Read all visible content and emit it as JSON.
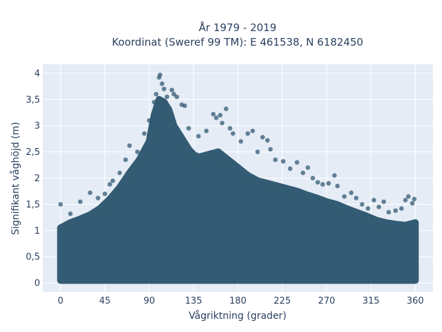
{
  "chart_data": {
    "type": "scatter",
    "title_line1": "År 1979 - 2019",
    "title_line2": "Koordinat (Sweref 99 TM): E 461538, N 6182450",
    "xlabel": "Vågriktning (grader)",
    "ylabel": "Signifikant våghöjd (m)",
    "xlim": [
      -18,
      378
    ],
    "ylim": [
      -0.17,
      4.17
    ],
    "x_ticks": [
      0,
      45,
      90,
      135,
      180,
      225,
      270,
      315,
      360
    ],
    "x_tick_labels": [
      "0",
      "45",
      "90",
      "135",
      "180",
      "225",
      "270",
      "315",
      "360"
    ],
    "y_ticks": [
      0,
      0.5,
      1,
      1.5,
      2,
      2.5,
      3,
      3.5,
      4
    ],
    "y_tick_labels": [
      "0",
      "0,5",
      "1",
      "1,5",
      "2",
      "2,5",
      "3",
      "3,5",
      "4"
    ],
    "grid": true,
    "marker_color": "#335b73",
    "background_color": "#e5ecf6",
    "envelope": {
      "x": [
        0,
        10,
        20,
        30,
        40,
        50,
        60,
        70,
        80,
        90,
        95,
        100,
        105,
        110,
        115,
        120,
        125,
        130,
        135,
        140,
        150,
        160,
        170,
        180,
        190,
        200,
        210,
        220,
        230,
        240,
        250,
        260,
        270,
        280,
        290,
        300,
        310,
        320,
        330,
        340,
        350,
        360
      ],
      "y": [
        1.05,
        1.15,
        1.22,
        1.3,
        1.42,
        1.6,
        1.82,
        2.1,
        2.35,
        2.7,
        3.2,
        3.5,
        3.45,
        3.3,
        3.0,
        2.85,
        2.7,
        2.55,
        2.45,
        2.4,
        2.45,
        2.5,
        2.35,
        2.2,
        2.05,
        1.95,
        1.9,
        1.85,
        1.8,
        1.75,
        1.68,
        1.62,
        1.55,
        1.5,
        1.42,
        1.35,
        1.28,
        1.2,
        1.15,
        1.12,
        1.1,
        1.15
      ]
    },
    "outliers": [
      {
        "x": 0,
        "y": 1.5
      },
      {
        "x": 10,
        "y": 1.32
      },
      {
        "x": 20,
        "y": 1.55
      },
      {
        "x": 30,
        "y": 1.72
      },
      {
        "x": 38,
        "y": 1.62
      },
      {
        "x": 45,
        "y": 1.7
      },
      {
        "x": 50,
        "y": 1.88
      },
      {
        "x": 53,
        "y": 1.95
      },
      {
        "x": 60,
        "y": 2.1
      },
      {
        "x": 66,
        "y": 2.35
      },
      {
        "x": 70,
        "y": 2.62
      },
      {
        "x": 78,
        "y": 2.5
      },
      {
        "x": 85,
        "y": 2.85
      },
      {
        "x": 90,
        "y": 3.1
      },
      {
        "x": 95,
        "y": 3.45
      },
      {
        "x": 97,
        "y": 3.6
      },
      {
        "x": 100,
        "y": 3.92
      },
      {
        "x": 101,
        "y": 3.97
      },
      {
        "x": 103,
        "y": 3.8
      },
      {
        "x": 105,
        "y": 3.7
      },
      {
        "x": 108,
        "y": 3.55
      },
      {
        "x": 113,
        "y": 3.68
      },
      {
        "x": 115,
        "y": 3.6
      },
      {
        "x": 118,
        "y": 3.55
      },
      {
        "x": 123,
        "y": 3.4
      },
      {
        "x": 126,
        "y": 3.38
      },
      {
        "x": 130,
        "y": 2.95
      },
      {
        "x": 140,
        "y": 2.8
      },
      {
        "x": 148,
        "y": 2.9
      },
      {
        "x": 155,
        "y": 3.22
      },
      {
        "x": 158,
        "y": 3.15
      },
      {
        "x": 162,
        "y": 3.2
      },
      {
        "x": 164,
        "y": 3.05
      },
      {
        "x": 168,
        "y": 3.32
      },
      {
        "x": 172,
        "y": 2.95
      },
      {
        "x": 175,
        "y": 2.85
      },
      {
        "x": 183,
        "y": 2.7
      },
      {
        "x": 190,
        "y": 2.85
      },
      {
        "x": 195,
        "y": 2.9
      },
      {
        "x": 200,
        "y": 2.5
      },
      {
        "x": 205,
        "y": 2.78
      },
      {
        "x": 210,
        "y": 2.72
      },
      {
        "x": 213,
        "y": 2.55
      },
      {
        "x": 218,
        "y": 2.35
      },
      {
        "x": 226,
        "y": 2.32
      },
      {
        "x": 233,
        "y": 2.18
      },
      {
        "x": 240,
        "y": 2.3
      },
      {
        "x": 246,
        "y": 2.1
      },
      {
        "x": 251,
        "y": 2.2
      },
      {
        "x": 256,
        "y": 2.0
      },
      {
        "x": 261,
        "y": 1.92
      },
      {
        "x": 266,
        "y": 1.88
      },
      {
        "x": 272,
        "y": 1.9
      },
      {
        "x": 278,
        "y": 2.05
      },
      {
        "x": 281,
        "y": 1.85
      },
      {
        "x": 288,
        "y": 1.65
      },
      {
        "x": 295,
        "y": 1.72
      },
      {
        "x": 300,
        "y": 1.62
      },
      {
        "x": 306,
        "y": 1.5
      },
      {
        "x": 312,
        "y": 1.42
      },
      {
        "x": 318,
        "y": 1.58
      },
      {
        "x": 323,
        "y": 1.45
      },
      {
        "x": 328,
        "y": 1.55
      },
      {
        "x": 333,
        "y": 1.35
      },
      {
        "x": 340,
        "y": 1.38
      },
      {
        "x": 346,
        "y": 1.42
      },
      {
        "x": 350,
        "y": 1.58
      },
      {
        "x": 353,
        "y": 1.65
      },
      {
        "x": 357,
        "y": 1.52
      },
      {
        "x": 359,
        "y": 1.6
      }
    ]
  }
}
